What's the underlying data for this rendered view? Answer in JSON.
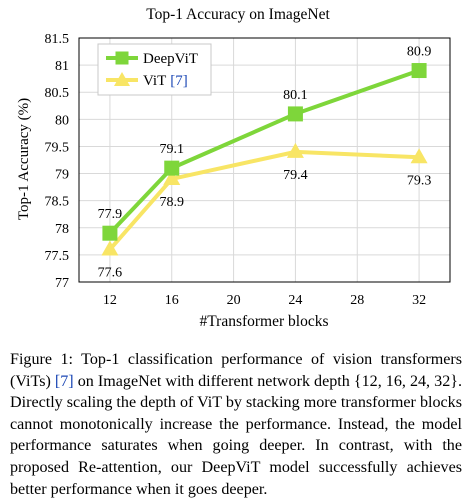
{
  "chart_data": {
    "type": "line",
    "title": "Top-1 Accuracy on ImageNet",
    "xlabel": "#Transformer blocks",
    "ylabel": "Top-1 Accuracy (%)",
    "xlim": [
      10,
      34
    ],
    "ylim": [
      77,
      81.5
    ],
    "xticks": [
      12,
      16,
      20,
      24,
      28,
      32
    ],
    "yticks": [
      77,
      77.5,
      78,
      78.5,
      79,
      79.5,
      80,
      80.5,
      81,
      81.5
    ],
    "x": [
      12,
      16,
      24,
      32
    ],
    "grid": true,
    "legend_position": "top-left",
    "series": [
      {
        "name": "DeepViT",
        "values": [
          77.9,
          79.1,
          80.1,
          80.9
        ],
        "labels": [
          "77.9",
          "79.1",
          "80.1",
          "80.9"
        ],
        "color": "#7ed63a",
        "marker": "square",
        "label_position": "above"
      },
      {
        "name": "ViT",
        "cite": "[7]",
        "values": [
          77.6,
          78.9,
          79.4,
          79.3
        ],
        "labels": [
          "77.6",
          "78.9",
          "79.4",
          "79.3"
        ],
        "color": "#f8e565",
        "marker": "triangle",
        "label_position": "below"
      }
    ]
  },
  "caption": {
    "label": "Figure 1:",
    "text_1": " Top-1 classification performance of vision transformers (ViTs) ",
    "cite": "[7]",
    "text_2": " on ImageNet with different network depth {12, 16, 24, 32}. Directly scaling the depth of ViT by stacking more transformer blocks cannot monotonically increase the performance. Instead, the model performance saturates when going deeper. In contrast, with the proposed Re-attention, our DeepViT model successfully achieves better performance when it goes deeper."
  }
}
